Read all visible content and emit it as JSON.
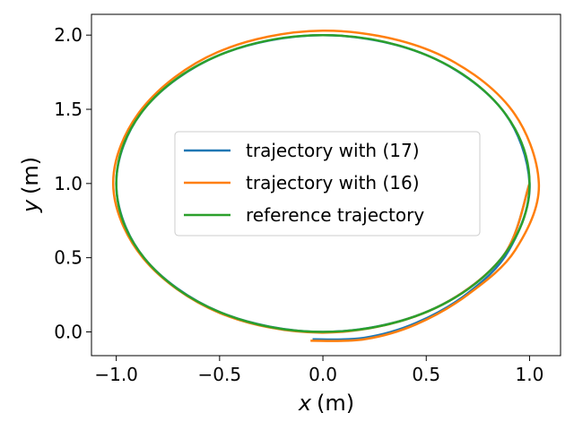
{
  "chart_data": {
    "type": "line",
    "title": "",
    "xlabel_var": "x",
    "xlabel_unit": "(m)",
    "ylabel_var": "y",
    "ylabel_unit": "(m)",
    "xlim": [
      -1.12,
      1.15
    ],
    "ylim": [
      -0.16,
      2.14
    ],
    "x_ticks": [
      -1.0,
      -0.5,
      0.0,
      0.5,
      1.0
    ],
    "x_tick_labels": [
      "−1.0",
      "−0.5",
      "0.0",
      "0.5",
      "1.0"
    ],
    "y_ticks": [
      0.0,
      0.5,
      1.0,
      1.5,
      2.0
    ],
    "y_tick_labels": [
      "0.0",
      "0.5",
      "1.0",
      "1.5",
      "2.0"
    ],
    "grid": false,
    "legend_position": "center",
    "series": [
      {
        "name": "trajectory with (17)",
        "color": "#1f77b4",
        "description_points": [
          [
            -0.05,
            -0.05
          ],
          [
            0.2,
            -0.04
          ],
          [
            0.45,
            0.06
          ],
          [
            0.7,
            0.26
          ],
          [
            0.9,
            0.55
          ],
          [
            1.0,
            1.0
          ],
          [
            0.866,
            1.5
          ],
          [
            0.5,
            1.866
          ],
          [
            0.0,
            2.0
          ],
          [
            -0.5,
            1.866
          ],
          [
            -0.866,
            1.5
          ],
          [
            -1.0,
            1.0
          ],
          [
            -0.866,
            0.5
          ],
          [
            -0.5,
            0.134
          ],
          [
            0.0,
            0.0
          ],
          [
            0.5,
            0.134
          ],
          [
            0.866,
            0.5
          ],
          [
            1.0,
            1.0
          ]
        ]
      },
      {
        "name": "trajectory with (16)",
        "color": "#ff7f0e",
        "description_points": [
          [
            -0.06,
            -0.06
          ],
          [
            0.2,
            -0.05
          ],
          [
            0.45,
            0.05
          ],
          [
            0.7,
            0.25
          ],
          [
            0.93,
            0.55
          ],
          [
            1.045,
            1.0
          ],
          [
            0.9,
            1.52
          ],
          [
            0.52,
            1.895
          ],
          [
            0.0,
            2.03
          ],
          [
            -0.51,
            1.885
          ],
          [
            -0.875,
            1.505
          ],
          [
            -1.015,
            1.0
          ],
          [
            -0.87,
            0.497
          ],
          [
            -0.5,
            0.128
          ],
          [
            0.0,
            -0.005
          ],
          [
            0.5,
            0.133
          ],
          [
            0.866,
            0.5
          ],
          [
            1.0,
            1.0
          ]
        ]
      },
      {
        "name": "reference trajectory",
        "color": "#2ca02c",
        "shape": "circle",
        "center": [
          0.0,
          1.0
        ],
        "radius": 1.0
      }
    ]
  }
}
